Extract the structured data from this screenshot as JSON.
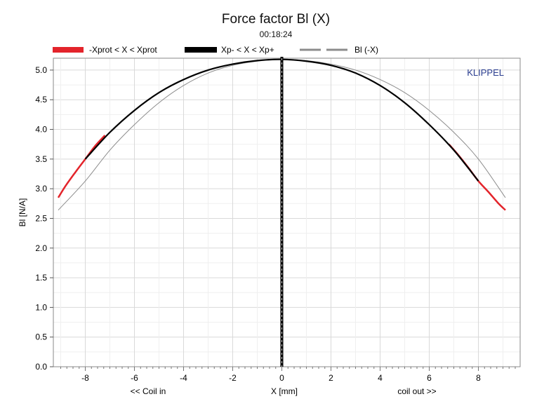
{
  "chart_data": {
    "type": "line",
    "title": "Force factor Bl (X)",
    "subtitle": "00:18:24",
    "xlabel": "X [mm]",
    "ylabel": "Bl [N/A]",
    "x_annotation_left": "<< Coil in",
    "x_annotation_right": "coil out >>",
    "watermark": "KLIPPEL",
    "xlim": [
      -9.3,
      9.7
    ],
    "ylim": [
      0.0,
      5.2
    ],
    "x_ticks": [
      -8,
      -6,
      -4,
      -2,
      0,
      2,
      4,
      6,
      8
    ],
    "y_ticks": [
      0.0,
      0.5,
      1.0,
      1.5,
      2.0,
      2.5,
      3.0,
      3.5,
      4.0,
      4.5,
      5.0
    ],
    "y_tick_labels": [
      "0.0",
      "0.5",
      "1.0",
      "1.5",
      "2.0",
      "2.5",
      "3.0",
      "3.5",
      "4.0",
      "4.5",
      "5.0"
    ],
    "grid": true,
    "vertical_marker_x": 0,
    "legend_position": "top",
    "legend": [
      {
        "label": "-Xprot < X < Xprot",
        "color": "#e3242b",
        "style": "solid"
      },
      {
        "label": "Xp- < X < Xp+",
        "color": "#000000",
        "style": "solid"
      },
      {
        "label": "Bl (-X)",
        "color": "#8c8c8c",
        "style": "dashed"
      }
    ],
    "series": [
      {
        "name": "-Xprot < X < Xprot",
        "color": "#e3242b",
        "x": [
          -9.1,
          -8.8,
          -8.4,
          -8.0,
          -7.6,
          -7.2,
          6.8,
          7.2,
          7.6,
          8.0,
          8.4,
          8.8,
          9.1
        ],
        "y": [
          2.85,
          3.05,
          3.28,
          3.5,
          3.72,
          3.9,
          3.75,
          3.56,
          3.35,
          3.13,
          2.95,
          2.76,
          2.64
        ]
      },
      {
        "name": "Xp- < X < Xp+",
        "color": "#000000",
        "x": [
          -8.0,
          -7.0,
          -6.0,
          -5.0,
          -4.0,
          -3.0,
          -2.0,
          -1.0,
          0.0,
          1.0,
          2.0,
          3.0,
          4.0,
          5.0,
          6.0,
          7.0,
          8.0
        ],
        "y": [
          3.5,
          3.95,
          4.32,
          4.62,
          4.84,
          5.0,
          5.1,
          5.16,
          5.18,
          5.15,
          5.08,
          4.95,
          4.74,
          4.45,
          4.08,
          3.65,
          3.13
        ]
      },
      {
        "name": "Bl (-X)",
        "color": "#8c8c8c",
        "x": [
          -9.1,
          -8.0,
          -7.0,
          -6.0,
          -5.0,
          -4.0,
          -3.0,
          -2.0,
          -1.0,
          0.0,
          1.0,
          2.0,
          3.0,
          4.0,
          5.0,
          6.0,
          7.0,
          8.0,
          9.1
        ],
        "y": [
          2.64,
          3.13,
          3.65,
          4.08,
          4.45,
          4.74,
          4.95,
          5.08,
          5.15,
          5.18,
          5.16,
          5.1,
          5.0,
          4.84,
          4.62,
          4.32,
          3.95,
          3.5,
          2.85
        ]
      }
    ]
  }
}
